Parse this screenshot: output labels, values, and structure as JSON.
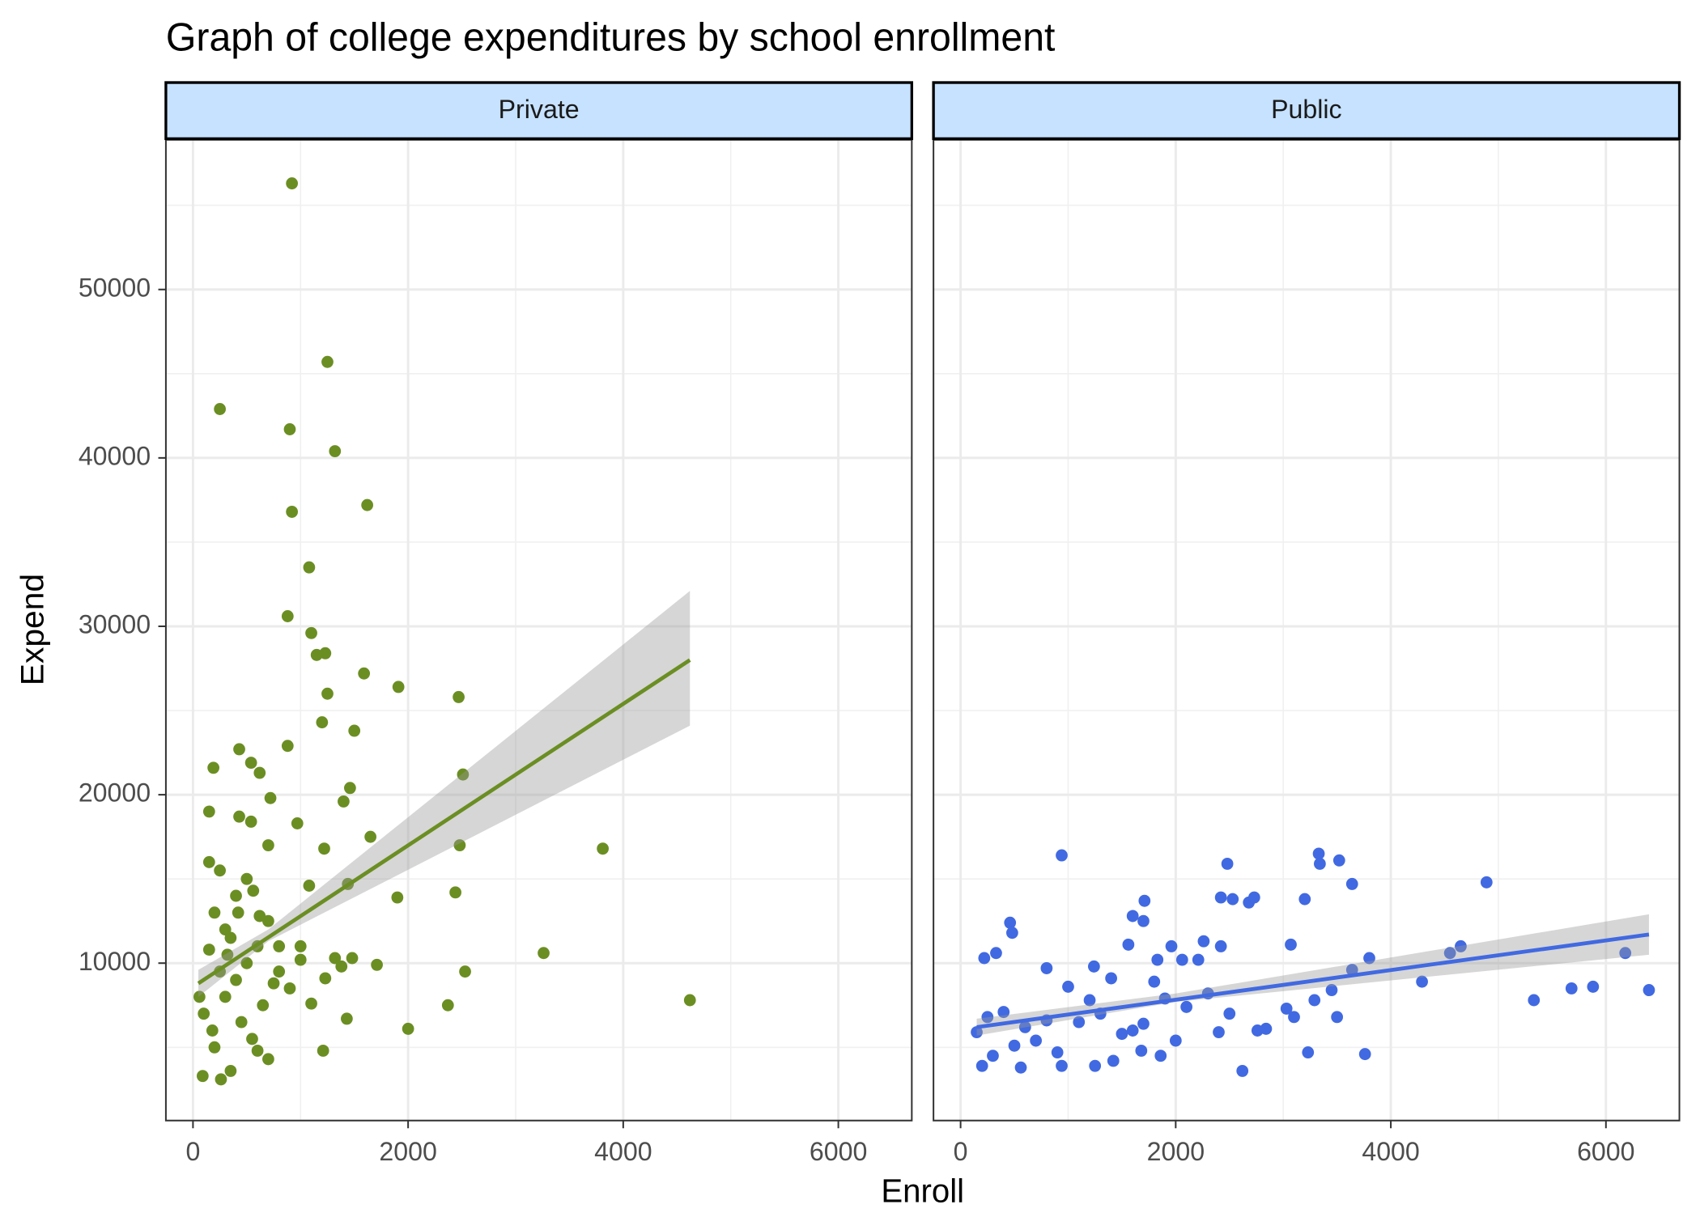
{
  "chart_data": {
    "type": "scatter",
    "title": "Graph of college expenditures by school enrollment",
    "x_label": "Enroll",
    "y_label": "Expend",
    "xlim": [
      -252,
      6683
    ],
    "ylim": [
      654,
      58889
    ],
    "xticks": [
      0,
      2000,
      4000,
      6000
    ],
    "yticks": [
      10000,
      20000,
      30000,
      40000,
      50000
    ],
    "x_minor_grid": [
      1000,
      3000,
      5000
    ],
    "y_minor_grid": [
      5000,
      15000,
      25000,
      35000,
      45000,
      55000
    ],
    "grid": true,
    "panels": [
      {
        "label": "Private",
        "color": "#6b8e23",
        "x": [
          920,
          1250,
          250,
          900,
          1320,
          1620,
          920,
          1080,
          880,
          1100,
          1150,
          1230,
          1250,
          1590,
          1910,
          2470,
          1200,
          1500,
          2510,
          430,
          880,
          190,
          540,
          620,
          1460,
          1400,
          720,
          150,
          430,
          540,
          970,
          1650,
          2480,
          3810,
          1220,
          700,
          2440,
          1900,
          1440,
          1080,
          3260,
          1710,
          2530,
          2370,
          4620,
          2000,
          1210,
          1430,
          700,
          260,
          90,
          350,
          600,
          200,
          100,
          300,
          400,
          500,
          600,
          300,
          200,
          400,
          500,
          150,
          250,
          700,
          800,
          900,
          1000,
          350,
          450,
          550,
          250,
          650,
          800,
          1100,
          1230,
          1320,
          1480,
          1380,
          1000,
          180,
          320,
          420,
          560,
          620,
          150,
          60,
          750
        ],
        "y": [
          56300,
          45700,
          42900,
          41700,
          40400,
          37200,
          36800,
          33500,
          30600,
          29600,
          28300,
          28400,
          26000,
          27200,
          26400,
          25800,
          24300,
          23800,
          21200,
          22700,
          22900,
          21600,
          21900,
          21300,
          20400,
          19600,
          19800,
          19000,
          18700,
          18400,
          18300,
          17500,
          17000,
          16800,
          16800,
          17000,
          14200,
          13900,
          14700,
          14600,
          10600,
          9900,
          9500,
          7500,
          7800,
          6100,
          4800,
          6700,
          4300,
          3100,
          3300,
          3600,
          4800,
          5000,
          7000,
          8000,
          9000,
          10000,
          11000,
          12000,
          13000,
          14000,
          15000,
          16000,
          15500,
          12500,
          9500,
          8500,
          10200,
          11500,
          6500,
          5500,
          9500,
          7500,
          11000,
          7600,
          9100,
          10300,
          10300,
          9800,
          11000,
          6000,
          10500,
          13000,
          14300,
          12800,
          10800,
          8000,
          8800
        ],
        "fit": {
          "x": [
            50,
            4620
          ],
          "y": [
            8800,
            28000
          ]
        },
        "band": {
          "x": [
            50,
            700,
            4620
          ],
          "lower": [
            8000,
            11300,
            24100
          ],
          "upper": [
            9600,
            12000,
            32100
          ]
        }
      },
      {
        "label": "Public",
        "color": "#4169e1",
        "x": [
          940,
          3330,
          3520,
          3340,
          2480,
          4890,
          3640,
          3200,
          2420,
          2530,
          2680,
          2730,
          1710,
          1600,
          1700,
          460,
          480,
          2260,
          3070,
          1960,
          2420,
          4650,
          4550,
          6180,
          1560,
          1830,
          3800,
          2060,
          2210,
          220,
          330,
          1240,
          800,
          3640,
          4290,
          6400,
          5880,
          5680,
          5330,
          3450,
          3290,
          3030,
          3100,
          3230,
          3760,
          2620,
          2760,
          2840,
          2400,
          1860,
          1680,
          1420,
          1250,
          940,
          560,
          200,
          150,
          250,
          400,
          600,
          700,
          900,
          1100,
          1300,
          1500,
          1700,
          1900,
          2100,
          2300,
          1000,
          1800,
          1400,
          500,
          300,
          800,
          1200,
          2500,
          3500,
          1600,
          2000
        ],
        "y": [
          16400,
          16500,
          16100,
          15900,
          15900,
          14800,
          14700,
          13800,
          13900,
          13800,
          13600,
          13900,
          13700,
          12800,
          12500,
          12400,
          11800,
          11300,
          11100,
          11000,
          11000,
          11000,
          10600,
          10600,
          11100,
          10200,
          10300,
          10200,
          10200,
          10300,
          10600,
          9800,
          9700,
          9600,
          8900,
          8400,
          8600,
          8500,
          7800,
          8400,
          7800,
          7300,
          6800,
          4700,
          4600,
          3600,
          6000,
          6100,
          5900,
          4500,
          4800,
          4200,
          3900,
          3900,
          3800,
          3900,
          5900,
          6800,
          7100,
          6200,
          5400,
          4700,
          6500,
          7000,
          5800,
          6400,
          7900,
          7400,
          8200,
          8600,
          8900,
          9100,
          5100,
          4500,
          6600,
          7800,
          7000,
          6800,
          6000,
          5400
        ],
        "fit": {
          "x": [
            150,
            6400
          ],
          "y": [
            6200,
            11700
          ]
        },
        "band": {
          "x": [
            150,
            2000,
            6400
          ],
          "lower": [
            5700,
            7700,
            10500
          ],
          "upper": [
            6700,
            8200,
            12900
          ]
        }
      }
    ]
  }
}
